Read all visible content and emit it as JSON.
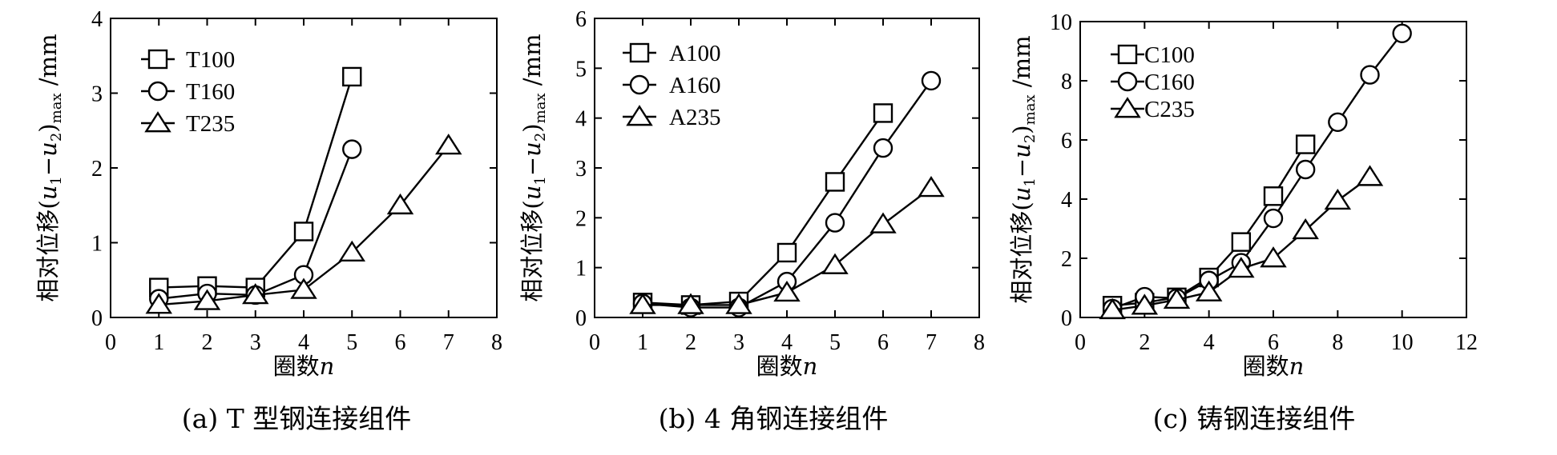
{
  "chart_data": [
    {
      "type": "line",
      "caption": "(a) T 型钢连接组件",
      "xlabel": {
        "text": "圈数",
        "var": "n"
      },
      "ylabel": {
        "pre": "相对位移(",
        "u1": "u",
        "s1": "1",
        "dash": "−",
        "u2": "u",
        "s2": "2",
        "close": ")",
        "sub": "max",
        "unit": " /mm"
      },
      "xlim": [
        0,
        8
      ],
      "ylim": [
        0,
        4
      ],
      "xticks": [
        0,
        1,
        2,
        3,
        4,
        5,
        6,
        7,
        8
      ],
      "yticks": [
        0,
        1,
        2,
        3,
        4
      ],
      "legend_position": "top-left",
      "series": [
        {
          "name": "T100",
          "marker": "square",
          "x": [
            1,
            2,
            3,
            4,
            5
          ],
          "y": [
            0.4,
            0.42,
            0.4,
            1.15,
            3.22
          ]
        },
        {
          "name": "T160",
          "marker": "circle",
          "x": [
            1,
            2,
            3,
            4,
            5
          ],
          "y": [
            0.25,
            0.32,
            0.3,
            0.57,
            2.25
          ]
        },
        {
          "name": "T235",
          "marker": "triangle",
          "x": [
            1,
            2,
            3,
            4,
            5,
            6,
            7
          ],
          "y": [
            0.17,
            0.22,
            0.3,
            0.37,
            0.87,
            1.5,
            2.3
          ]
        }
      ]
    },
    {
      "type": "line",
      "caption": "(b) 4 角钢连接组件",
      "xlabel": {
        "text": "圈数",
        "var": "n"
      },
      "ylabel": {
        "pre": "相对位移(",
        "u1": "u",
        "s1": "1",
        "dash": "−",
        "u2": "u",
        "s2": "2",
        "close": ")",
        "sub": "max",
        "unit": " /mm"
      },
      "xlim": [
        0,
        8
      ],
      "ylim": [
        0,
        6
      ],
      "xticks": [
        0,
        1,
        2,
        3,
        4,
        5,
        6,
        7,
        8
      ],
      "yticks": [
        0,
        1,
        2,
        3,
        4,
        5,
        6
      ],
      "legend_position": "top-left",
      "series": [
        {
          "name": "A100",
          "marker": "square",
          "x": [
            1,
            2,
            3,
            4,
            5,
            6
          ],
          "y": [
            0.3,
            0.25,
            0.32,
            1.3,
            2.72,
            4.1
          ]
        },
        {
          "name": "A160",
          "marker": "circle",
          "x": [
            1,
            2,
            3,
            4,
            5,
            6,
            7
          ],
          "y": [
            0.28,
            0.2,
            0.2,
            0.72,
            1.9,
            3.4,
            4.75
          ]
        },
        {
          "name": "A235",
          "marker": "triangle",
          "x": [
            1,
            2,
            3,
            4,
            5,
            6,
            7
          ],
          "y": [
            0.25,
            0.25,
            0.25,
            0.5,
            1.05,
            1.87,
            2.6
          ]
        }
      ]
    },
    {
      "type": "line",
      "caption": "(c)  铸钢连接组件",
      "xlabel": {
        "text": "圈数",
        "var": "n"
      },
      "ylabel": {
        "pre": "相对位移(",
        "u1": "u",
        "s1": "1",
        "dash": "−",
        "u2": "u",
        "s2": "2",
        "close": ")",
        "sub": "max",
        "unit": " /mm"
      },
      "xlim": [
        0,
        12
      ],
      "ylim": [
        0,
        10
      ],
      "xticks": [
        0,
        2,
        4,
        6,
        8,
        10,
        12
      ],
      "yticks": [
        0,
        2,
        4,
        6,
        8,
        10
      ],
      "legend_position": "top-left",
      "series": [
        {
          "name": "C100",
          "marker": "square",
          "x": [
            1,
            2,
            3,
            4,
            5,
            6,
            7
          ],
          "y": [
            0.4,
            0.5,
            0.68,
            1.35,
            2.55,
            4.1,
            5.85
          ]
        },
        {
          "name": "C160",
          "marker": "circle",
          "x": [
            1,
            2,
            3,
            4,
            5,
            6,
            7,
            8,
            9,
            10
          ],
          "y": [
            0.3,
            0.7,
            0.65,
            1.25,
            1.85,
            3.35,
            5.0,
            6.6,
            8.2,
            9.6
          ]
        },
        {
          "name": "C235",
          "marker": "triangle",
          "x": [
            1,
            2,
            3,
            4,
            5,
            6,
            7,
            8,
            9
          ],
          "y": [
            0.25,
            0.4,
            0.6,
            0.85,
            1.65,
            2.0,
            2.95,
            3.95,
            4.75
          ]
        }
      ]
    }
  ]
}
